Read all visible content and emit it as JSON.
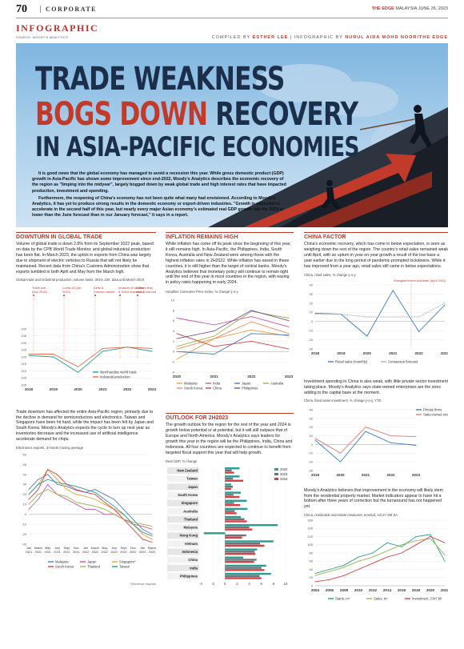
{
  "header": {
    "page_number": "70",
    "section": "CORPORATE",
    "publication_brand": "THE EDGE",
    "publication_rest": " MALAYSIA",
    "issue_date": "JUNE 26, 2023",
    "kicker": "INFOGRAPHIC",
    "source": "SOURCE: MOODY'S ANALYTICS",
    "compiled_label": "COMPILED BY ",
    "compiled_by": "ESTHER LEE",
    "infographic_label": " | INFOGRAPHIC BY ",
    "infographic_by": "NURUL AIDA MOHD NOOR/THE EDGE"
  },
  "hero": {
    "line1": "TRADE WEAKNESS",
    "line2_red": "BOGS DOWN",
    "line2_rest": " RECOVERY",
    "line3": "IN ASIA-PACIFIC ECONOMIES",
    "intro_p1": "It is good news that the global economy has managed to avoid a recession this year. While gross domestic product (GDP) growth in Asia-Pacific has shown some improvement since end-2022, Moody's Analytics describes the economic recovery of the region as \"limping into the midyear\", largely bogged down by weak global trade and high interest rates that have impacted production, investment and spending.",
    "intro_p2": "Furthermore, the reopening of China's economy has not been quite what many had envisioned. According to Moody's Analytics, it has yet to produce strong results in the domestic economy or export-driven industries. \"Growth is expected to accelerate in the second half of this year, but nearly every major Asian economy's estimated real GDP growth rate for 2023 is lower than the June forecast than in our January forecast,\" it says in a report."
  },
  "col1": {
    "head": "DOWNTURN IN GLOBAL TRADE",
    "text1": "Volume of global trade is down 2.8% from its September 2022 peak, based on data by the CPB World Trade Monitor, and global industrial production has been flat. In March 2023, the uptick in exports from China was largely due to shipment of electric vehicles to Russia that will not likely be maintained. Recent data from China's Customs Administration show that exports tumbled in both April and May from the March high.",
    "chart1_caption": "Global trade and industrial production, volume basis, 2010=100, data until March 2023",
    "chart1_annotations": [
      "Trade war (Nov 2018)",
      "Covid-19 (Jan 2020)",
      "Delta & Omicron waves",
      "Invasion of Ukraine & China lockdowns",
      "China's final zero-Covid lockdowns"
    ],
    "text2": "Trade downturn has affected the entire Asia-Pacific region, primarily due to the decline in demand for semiconductors and electronics. Taiwan and Singapore have been hit hard, while the impact has been felt by Japan and South Korea. Moody's Analytics expects the cycle to turn up next year as inventories decrease and the increased use of artificial intelligence accelerate demand for chips.",
    "chart2_caption": "Electronics exports, 3-month moving average",
    "footnote": "*Domestic exports"
  },
  "col2": {
    "head": "INFLATION REMAINS HIGH",
    "text1": "While inflation has come off its peak since the beginning of this year, it still remains high. In Asia-Pacific, the Philippines, India, South Korea, Australia and New Zealand were among those with the highest inflation rates in 2H2022. While inflation has eased in these countries, it is still higher than the target of central banks. Moody's Analytics believes that monetary policy will continue to remain tight until the end of this year in most countries in the region, with easing in policy rates happening in early 2024.",
    "chart_caption": "Headline Consumer Price Index, % change y-o-y",
    "head2": "OUTLOOK FOR 2H2023",
    "text2": "The growth outlook for the region for the rest of the year and 2024 is growth below potential or at potential, but it will still outpace that of Europe and North America. Moody's Analytics says leaders for growth this year in the region will be the Philippines, India, China and Indonesia. All four countries are expected to continue to benefit from targeted fiscal support this year that will help growth.",
    "gdp_caption": "Real GDP, % change"
  },
  "col3": {
    "head": "CHINA FACTOR",
    "text1": "China's economic recovery, which has come in below expectation, is seen as weighing down the rest of the region. The country's retail sales remained weak until April, with an upturn in year-on-year growth a result of the low base a year earlier due to the long period of pandemic-prompted lockdowns. While it has improved from a year ago, retail sales still came in below expectations.",
    "chart1_caption": "China, retail sales, % change y-o-y",
    "chart1_annotation": "Shanghai enters lockdown (April 2022)",
    "text2": "Investment spending in China is also weak, with little private sector investment taking place. Moody's Analytics says state-owned enterprises are the ones adding to the capital base at the moment.",
    "chart2_caption": "China, fixed asset investment, % change y-o-y, YTD",
    "text3": "Moody's Analytics believes that improvement in the economy will likely stem from the residential property market. Market indicators appear to have hit a bottom after three years of correction but the turnaround has not happened yet.",
    "chart3_caption": "China, residential real estate measures, trended, mil m² SM SA"
  },
  "chart_data": [
    {
      "type": "line",
      "x": [
        "2018",
        "2019",
        "2020",
        "2021",
        "2022",
        "2023"
      ],
      "ylim": [
        100,
        140
      ],
      "yticks": [
        "140",
        "135",
        "130",
        "125",
        "120",
        "115",
        "110",
        "105",
        "100"
      ],
      "series": [
        {
          "name": "Merchandise world trade",
          "color": "#2a9d8f",
          "values": [
            121,
            120,
            109,
            124,
            127,
            124
          ]
        },
        {
          "name": "Industrial production",
          "color": "#e76f51",
          "values": [
            122,
            122,
            113,
            126,
            127,
            126
          ]
        }
      ]
    },
    {
      "type": "line",
      "x": [
        "2020",
        "2021",
        "2022",
        "2023"
      ],
      "ylim": [
        -4,
        10
      ],
      "yticks": [
        "10",
        "8",
        "6",
        "4",
        "2",
        "0",
        "-2",
        "-4"
      ],
      "series": [
        {
          "name": "Malaysia",
          "color": "#e9a03b",
          "values": [
            -1.5,
            2.5,
            4.2,
            3.0
          ]
        },
        {
          "name": "India",
          "color": "#c85a9c",
          "values": [
            6.5,
            5.2,
            6.8,
            4.8
          ]
        },
        {
          "name": "Japan",
          "color": "#4f7cc2",
          "values": [
            0.0,
            -0.5,
            3.5,
            3.2
          ]
        },
        {
          "name": "Australia",
          "color": "#97b54b",
          "values": [
            1.0,
            3.0,
            7.8,
            6.5
          ]
        },
        {
          "name": "South Korea",
          "color": "#f08a5d",
          "values": [
            0.5,
            2.5,
            5.8,
            3.5
          ]
        },
        {
          "name": "China",
          "color": "#d94040",
          "values": [
            3.5,
            1.0,
            2.0,
            0.5
          ]
        },
        {
          "name": "Philippines",
          "color": "#7b4fa0",
          "values": [
            2.5,
            4.0,
            8.0,
            6.0
          ]
        }
      ]
    },
    {
      "type": "line",
      "x": [
        "Jan 2021",
        "March 2021",
        "May 2021",
        "July 2021",
        "Sept 2021",
        "Nov 2021",
        "Jan 2022",
        "March 2022",
        "May 2022",
        "July 2022",
        "Sept 2022",
        "Nov 2022",
        "Jan 2023",
        "March 2023"
      ],
      "ylim": [
        -30,
        60
      ],
      "yticks": [
        "60",
        "50",
        "40",
        "30",
        "20",
        "10",
        "0",
        "-10",
        "-20",
        "-30"
      ],
      "series": [
        {
          "name": "Malaysia",
          "color": "#4f7cc2",
          "values": [
            25,
            35,
            40,
            30,
            28,
            24,
            22,
            25,
            20,
            15,
            5,
            -5,
            -15,
            -20
          ]
        },
        {
          "name": "Japan",
          "color": "#c85a9c",
          "values": [
            5,
            15,
            30,
            20,
            15,
            10,
            5,
            5,
            0,
            0,
            -5,
            -10,
            -12,
            -15
          ]
        },
        {
          "name": "Singapore*",
          "color": "#e9a03b",
          "values": [
            20,
            30,
            45,
            35,
            25,
            20,
            18,
            15,
            10,
            5,
            0,
            -10,
            -20,
            -25
          ]
        },
        {
          "name": "South Korea",
          "color": "#d94040",
          "values": [
            15,
            25,
            45,
            40,
            30,
            25,
            22,
            20,
            12,
            5,
            -5,
            -15,
            -25,
            -28
          ]
        },
        {
          "name": "Thailand",
          "color": "#97b54b",
          "values": [
            10,
            20,
            25,
            20,
            18,
            12,
            10,
            8,
            5,
            0,
            -5,
            -8,
            -10,
            -12
          ]
        },
        {
          "name": "Taiwan",
          "color": "#2a9d8f",
          "values": [
            20,
            30,
            35,
            32,
            30,
            28,
            25,
            22,
            15,
            8,
            0,
            -10,
            -18,
            -22
          ]
        }
      ]
    },
    {
      "type": "bar",
      "categories": [
        "New Zealand",
        "Taiwan",
        "Japan",
        "South Korea",
        "Singapore",
        "Australia",
        "Thailand",
        "Malaysia",
        "Hong Kong",
        "Vietnam",
        "Indonesia",
        "China",
        "India",
        "Philippines"
      ],
      "xlim": [
        -4,
        10
      ],
      "xticks": [
        "-4",
        "-2",
        "0",
        "2",
        "4",
        "6",
        "8",
        "10"
      ],
      "series": [
        {
          "name": "2022",
          "color": "#2a9d8f",
          "values": [
            2.4,
            2.4,
            1.0,
            2.6,
            3.6,
            3.7,
            2.6,
            8.7,
            -3.5,
            8.0,
            5.3,
            3.0,
            6.8,
            7.6
          ]
        },
        {
          "name": "2023",
          "color": "#6c757d",
          "values": [
            1.1,
            1.3,
            1.3,
            1.4,
            1.5,
            1.6,
            3.2,
            4.0,
            3.5,
            5.8,
            4.9,
            5.2,
            6.0,
            5.7
          ]
        },
        {
          "name": "2024",
          "color": "#d94040",
          "values": [
            1.5,
            3.0,
            1.0,
            2.4,
            2.5,
            1.9,
            3.6,
            4.5,
            2.8,
            6.5,
            5.0,
            4.8,
            6.5,
            6.0
          ]
        }
      ]
    },
    {
      "type": "line",
      "x": [
        "2018",
        "2019",
        "2020",
        "2021",
        "2022",
        "2023"
      ],
      "ylim": [
        -30,
        40
      ],
      "yticks": [
        "40",
        "30",
        "20",
        "10",
        "0",
        "-10",
        "-20",
        "-30"
      ],
      "series": [
        {
          "name": "Retail sales (monthly)",
          "color": "#3a7fc0",
          "values": [
            9,
            8,
            -16,
            34,
            -11,
            18
          ]
        },
        {
          "name": "Consensus forecast",
          "color": "#b0b0b0",
          "values": [
            8,
            8,
            5,
            5,
            5,
            20
          ]
        }
      ]
    },
    {
      "type": "line",
      "x": [
        "2019",
        "2020",
        "2021",
        "2022",
        "2023"
      ],
      "ylim": [
        -30,
        40
      ],
      "yticks": [
        "40",
        "30",
        "20",
        "10",
        "0",
        "-10",
        "-20",
        "-30"
      ],
      "series": [
        {
          "name": "Private firms",
          "color": "#3a7fc0",
          "values": [
            5,
            -20,
            15,
            2,
            -1
          ]
        },
        {
          "name": "State-owned enterprises",
          "color": "#e07a7a",
          "values": [
            7,
            -10,
            20,
            10,
            9
          ]
        }
      ]
    },
    {
      "type": "line",
      "x": [
        "2004",
        "2006",
        "2008",
        "2010",
        "2012",
        "2014",
        "2016",
        "2018",
        "2020",
        "2022"
      ],
      "ylim": [
        0,
        160
      ],
      "yticks": [
        "160",
        "140",
        "120",
        "100",
        "80",
        "60",
        "40",
        "20",
        "0"
      ],
      "series": [
        {
          "name": "Starts, m²",
          "color": "#2a9d8f",
          "values": [
            30,
            40,
            50,
            70,
            80,
            105,
            95,
            120,
            125,
            60
          ]
        },
        {
          "name": "Sales, m²",
          "color": "#97b54b",
          "values": [
            25,
            35,
            45,
            60,
            70,
            85,
            100,
            110,
            115,
            75
          ]
        },
        {
          "name": "Investment, CNY bil",
          "color": "#d94040",
          "values": [
            10,
            15,
            25,
            40,
            55,
            70,
            80,
            100,
            120,
            105
          ]
        }
      ]
    }
  ]
}
